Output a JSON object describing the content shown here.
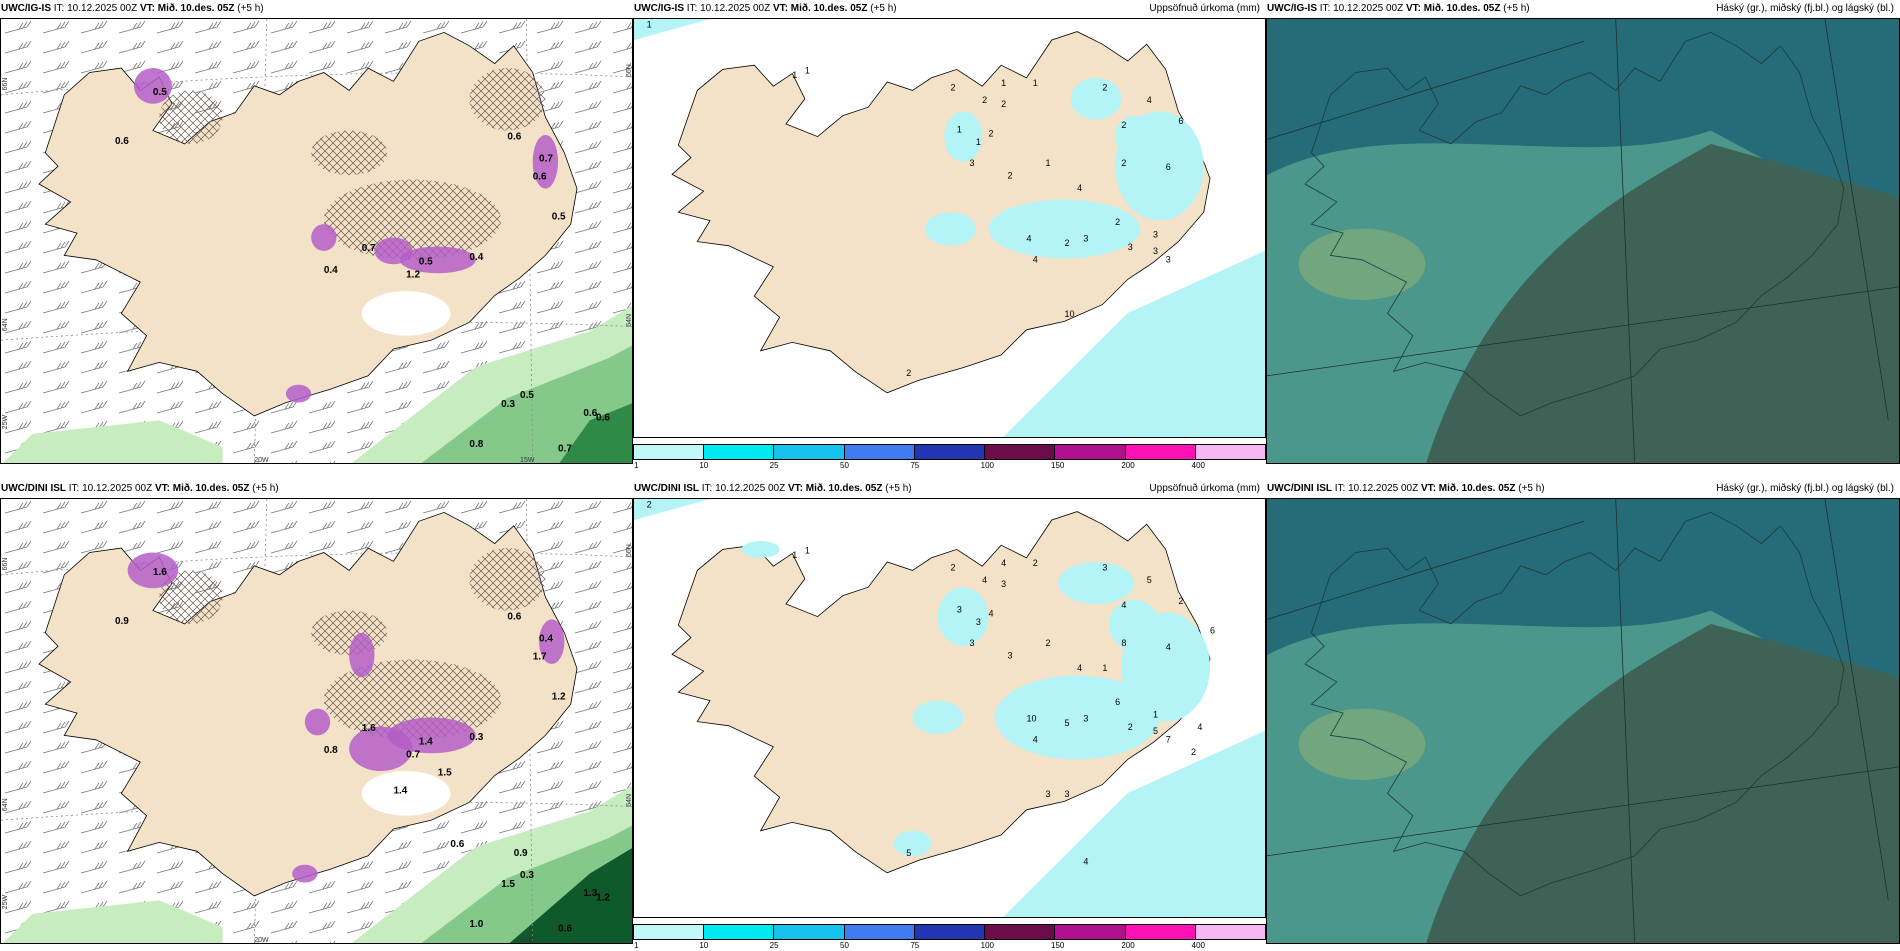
{
  "colors": {
    "land": "#f3e2c8",
    "ocean_precip": "#b4f3f6",
    "green_light": "#c6ecc0",
    "green_mid": "#84c98a",
    "green_dark": "#2f8a48",
    "green_deep": "#0f5a2a",
    "magenta": "#b45ec8",
    "cloud_base": "#266b78",
    "cloud_mid": "#4b978b",
    "cloud_dark": "#3f6257",
    "cloud_light": "#7aaa7c"
  },
  "rows": [
    {
      "model": "UWC/IG-IS",
      "it": "IT: 10.12.2025 00Z",
      "vt_label": "VT:",
      "vt": "Mið. 10.des. 05Z",
      "lead": "(+5 h)",
      "lat_labels": [
        "66N",
        "64N",
        "25W"
      ],
      "lon_labels": [
        "20W",
        "15W"
      ],
      "right_lat_labels": [
        "66N",
        "64N"
      ],
      "wind_values": [
        "0.6",
        "0.7",
        "0.6",
        "0.5",
        "0.4",
        "0.7",
        "0.5",
        "1.2",
        "0.4",
        "0.5",
        "0.3",
        "0.8",
        "0.7",
        "0.6",
        "0.6",
        "0.5",
        "0.6"
      ],
      "precip_values": [
        "1",
        "1",
        "1",
        "2",
        "2",
        "2",
        "1",
        "1",
        "1",
        "1",
        "4",
        "3",
        "2",
        "2",
        "1",
        "2",
        "6",
        "6",
        "2",
        "2",
        "4",
        "3",
        "3",
        "3",
        "4",
        "4",
        "2",
        "3",
        "2",
        "3",
        "10",
        "2"
      ],
      "precip_title": "Uppsöfnuð úrkoma (mm)",
      "cloud_title": "Háský (gr.), miðský (fj.bl.) og lágský (bl.)"
    },
    {
      "model": "UWC/DINI ISL",
      "it": "IT: 10.12.2025 00Z",
      "vt_label": "VT:",
      "vt": "Mið. 10.des. 05Z",
      "lead": "(+5 h)",
      "lat_labels": [
        "66N",
        "64N",
        "25W"
      ],
      "lon_labels": [
        "20W",
        "15W"
      ],
      "right_lat_labels": [
        "66N",
        "64N"
      ],
      "wind_values": [
        "0.6",
        "0.4",
        "1.7",
        "1.2",
        "0.8",
        "1.6",
        "1.4",
        "0.7",
        "0.3",
        "0.3",
        "1.5",
        "1.0",
        "0.6",
        "1.3",
        "1.2",
        "1.6",
        "0.9",
        "1.5",
        "1.4",
        "0.9",
        "0.6"
      ],
      "precip_values": [
        "2",
        "1",
        "1",
        "2",
        "4",
        "3",
        "4",
        "2",
        "3",
        "3",
        "4",
        "3",
        "4",
        "3",
        "2",
        "3",
        "4",
        "2",
        "8",
        "4",
        "5",
        "3",
        "2",
        "1",
        "10",
        "4",
        "5",
        "7",
        "6",
        "5",
        "3",
        "5",
        "6",
        "4",
        "1",
        "2",
        "3",
        "4"
      ],
      "precip_title": "Uppsöfnuð úrkoma (mm)",
      "cloud_title": "Háský (gr.), miðský (fj.bl.) og lágský (bl.)"
    }
  ],
  "legend": {
    "ticks": [
      "1",
      "10",
      "25",
      "50",
      "75",
      "100",
      "150",
      "200",
      "400"
    ],
    "colors": [
      "#bff6f8",
      "#00e9ee",
      "#17c3ee",
      "#3e7cf0",
      "#2334b4",
      "#6a0d4a",
      "#b0128f",
      "#ff12b4",
      "#f6b8f2"
    ]
  }
}
